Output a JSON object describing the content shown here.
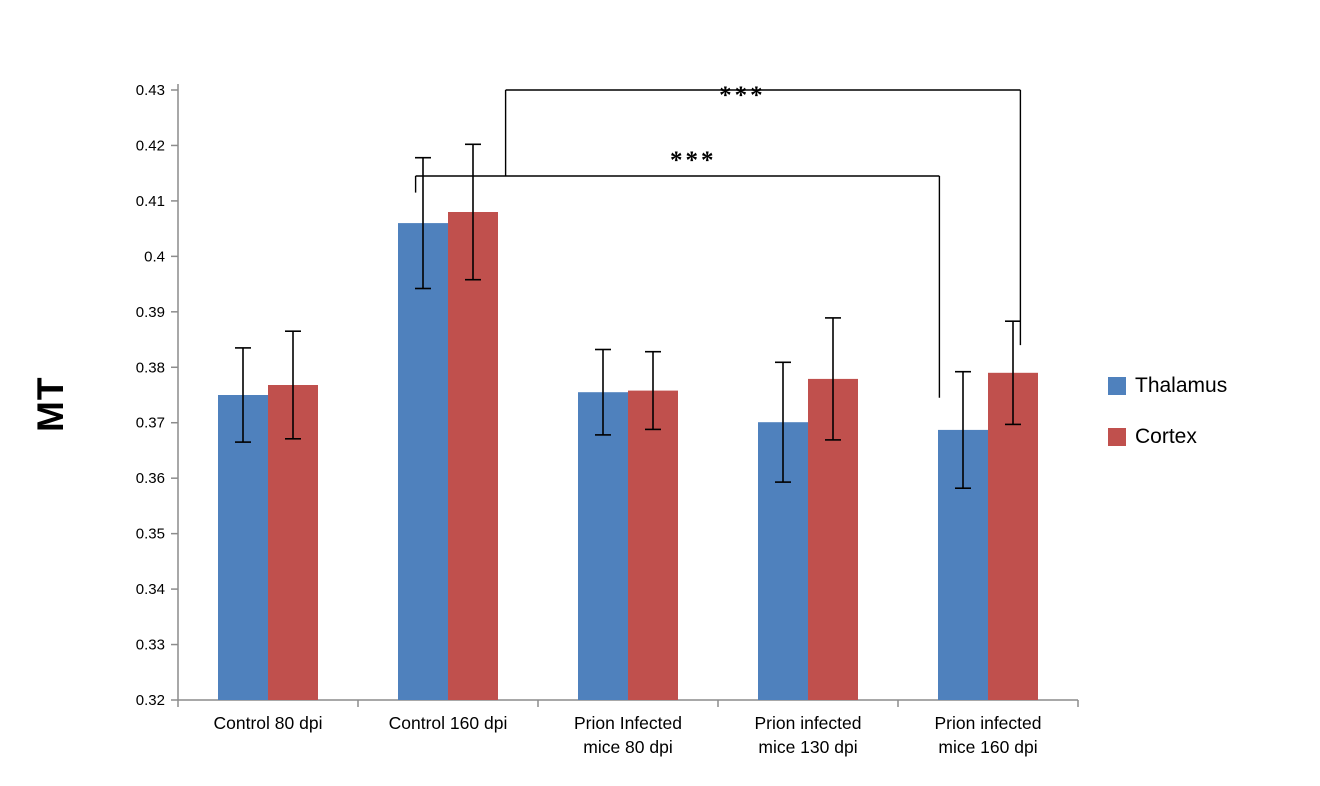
{
  "chart_data": {
    "type": "bar",
    "title": "",
    "ylabel": "MT",
    "xlabel": "",
    "ylim": [
      0.32,
      0.43
    ],
    "ytick_step": 0.01,
    "grid": false,
    "legend_position": "right",
    "categories": [
      "Control  80 dpi",
      "Control  160 dpi",
      "Prion Infected mice 80 dpi",
      "Prion infected mice 130 dpi",
      "Prion infected mice 160 dpi"
    ],
    "category_lines": [
      [
        "Control  80 dpi"
      ],
      [
        "Control  160 dpi"
      ],
      [
        "Prion Infected",
        "mice 80 dpi"
      ],
      [
        "Prion infected",
        "mice 130 dpi"
      ],
      [
        "Prion infected",
        "mice 160 dpi"
      ]
    ],
    "series": [
      {
        "name": "Thalamus",
        "color": "#4F81BD",
        "values": [
          0.375,
          0.406,
          0.3755,
          0.3701,
          0.3687
        ],
        "errors": [
          0.0085,
          0.0118,
          0.0077,
          0.0108,
          0.0105
        ]
      },
      {
        "name": "Cortex",
        "color": "#C0504D",
        "values": [
          0.3768,
          0.408,
          0.3758,
          0.3779,
          0.379
        ],
        "errors": [
          0.0097,
          0.0122,
          0.007,
          0.011,
          0.0093
        ]
      }
    ],
    "significance": [
      {
        "stars": "***",
        "level": 0.4145,
        "from": {
          "group": 1,
          "x_frac": 0.32
        },
        "to": {
          "group": 4,
          "x_frac": 0.23
        },
        "left_drop_to": 0.4115,
        "right_drop_to": 0.3745,
        "stars_x_frac": 0.53,
        "stars_dy": -8
      },
      {
        "stars": "***",
        "level": 0.43,
        "from": {
          "group": 1,
          "x_frac": 0.82
        },
        "to": {
          "group": 4,
          "x_frac": 0.68
        },
        "left_drop_to": 0.4145,
        "right_drop_to": 0.384,
        "stars_x_frac": 0.46,
        "stars_dy": 13
      }
    ]
  }
}
